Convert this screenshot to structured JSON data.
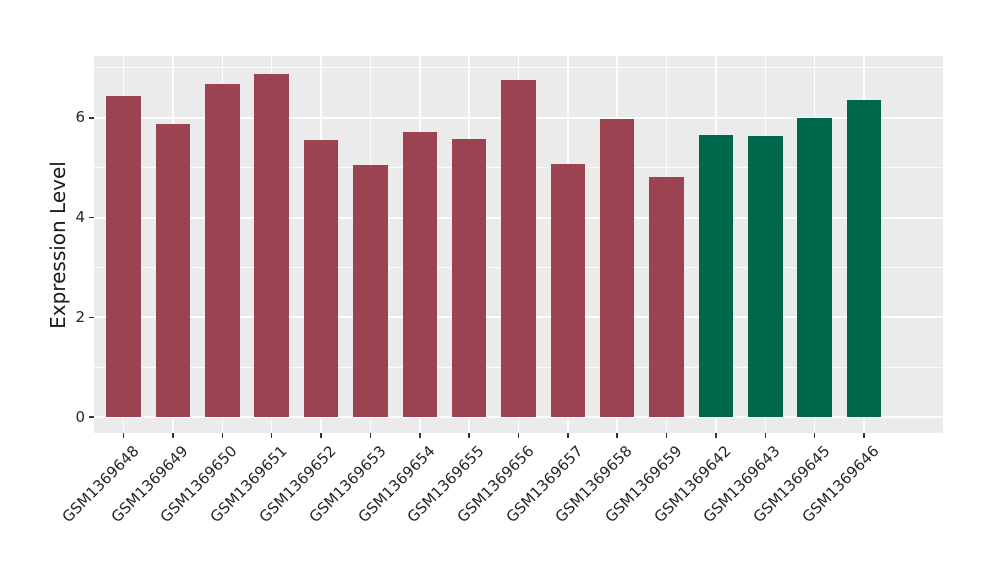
{
  "figure": {
    "background": "#ffffff",
    "panel_background": "#ebebeb",
    "grid_color": "#ffffff",
    "tick_color": "#333333",
    "text_color": "#262626"
  },
  "chart_data": {
    "type": "bar",
    "title": "",
    "xlabel": "",
    "ylabel": "Expression Level",
    "grid": true,
    "legend": false,
    "ylim": [
      -0.32,
      7.24
    ],
    "yticks": [
      0,
      2,
      4,
      6
    ],
    "minor_yticks": [
      1,
      3,
      5,
      7
    ],
    "categories": [
      "GSM1369648",
      "GSM1369649",
      "GSM1369650",
      "GSM1369651",
      "GSM1369652",
      "GSM1369653",
      "GSM1369654",
      "GSM1369655",
      "GSM1369656",
      "GSM1369657",
      "GSM1369658",
      "GSM1369659",
      "GSM1369642",
      "GSM1369643",
      "GSM1369645",
      "GSM1369646"
    ],
    "values": [
      6.44,
      5.88,
      6.68,
      6.88,
      5.55,
      5.05,
      5.72,
      5.57,
      6.76,
      5.07,
      5.97,
      4.81,
      5.65,
      5.63,
      5.99,
      6.36
    ],
    "groups": [
      {
        "name": "maroon-group",
        "color": "#9c4351",
        "count": 12
      },
      {
        "name": "green-group",
        "color": "#00684a",
        "count": 4
      }
    ],
    "bar_colors": [
      "#9c4351",
      "#9c4351",
      "#9c4351",
      "#9c4351",
      "#9c4351",
      "#9c4351",
      "#9c4351",
      "#9c4351",
      "#9c4351",
      "#9c4351",
      "#9c4351",
      "#9c4351",
      "#00684a",
      "#00684a",
      "#00684a",
      "#00684a"
    ]
  }
}
